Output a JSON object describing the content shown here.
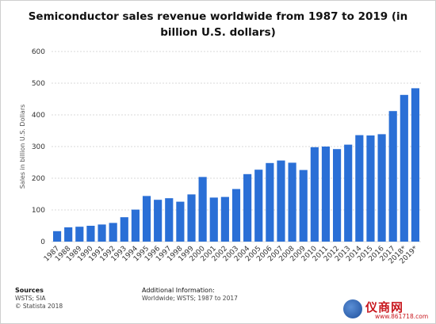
{
  "chart_data": {
    "type": "bar",
    "title": "Semiconductor sales revenue worldwide from 1987 to 2019 (in billion U.S. dollars)",
    "xlabel": "",
    "ylabel": "Sales in billion U.S. Dollars",
    "ylim": [
      0,
      600
    ],
    "yticks": [
      0,
      100,
      200,
      300,
      400,
      500,
      600
    ],
    "grid": true,
    "bar_color": "#2a6fd6",
    "categories": [
      "1987",
      "1988",
      "1989",
      "1990",
      "1991",
      "1992",
      "1993",
      "1994",
      "1995",
      "1996",
      "1997",
      "1998",
      "1999",
      "2000",
      "2001",
      "2002",
      "2003",
      "2004",
      "2005",
      "2006",
      "2007",
      "2008",
      "2009",
      "2010",
      "2011",
      "2012",
      "2013",
      "2014",
      "2015",
      "2016",
      "2017",
      "2018*",
      "2019*"
    ],
    "values": [
      33,
      45,
      47,
      50,
      54,
      59,
      77,
      101,
      144,
      132,
      137,
      126,
      149,
      204,
      139,
      141,
      166,
      213,
      227,
      248,
      256,
      249,
      226,
      298,
      300,
      292,
      306,
      336,
      335,
      339,
      412,
      463,
      484
    ]
  },
  "footer": {
    "sources_heading": "Sources",
    "sources_line1": "WSTS; SIA",
    "sources_line2": "© Statista 2018",
    "info_heading": "Additional Information:",
    "info_line1": "Worldwide; WSTS; 1987 to 2017"
  },
  "watermark": {
    "text": "仪商网",
    "url": "www.861718.com"
  }
}
